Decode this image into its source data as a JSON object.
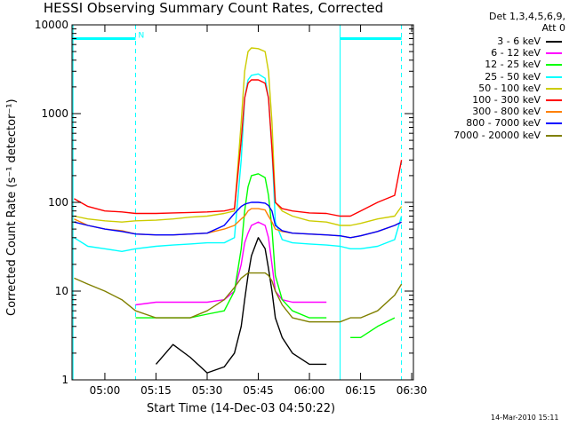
{
  "chart_data": {
    "type": "line",
    "title": "HESSI Observing Summary Count Rates, Corrected",
    "xlabel": "Start Time (14-Dec-03 04:50:22)",
    "ylabel": "Corrected Count Rate (s⁻¹ detector⁻¹)",
    "yscale": "log",
    "xlim": [
      "04:50:22",
      "06:30:30"
    ],
    "ylim": [
      1,
      10000
    ],
    "x_ticks": [
      "05:00",
      "05:15",
      "05:30",
      "05:45",
      "06:00",
      "06:15",
      "06:30"
    ],
    "y_ticks": [
      "1",
      "10",
      "100",
      "1000",
      "10000"
    ],
    "legend_header": [
      "Det 1,3,4,5,6,9,",
      "Att 0"
    ],
    "legend_position": "right",
    "grid": false,
    "annotations": [
      {
        "text": "N",
        "x": "05:09",
        "y": 7000,
        "color": "#00ffff"
      }
    ],
    "bars": [
      {
        "name": "night",
        "from": "04:50:22",
        "to": "05:09",
        "y": 7000,
        "color": "#00ffff"
      },
      {
        "name": "night",
        "from": "06:09",
        "to": "06:27",
        "y": 7000,
        "color": "#00ffff"
      }
    ],
    "vlines": [
      {
        "x": "04:50:40",
        "style": "solid",
        "color": "#00ffff"
      },
      {
        "x": "05:09",
        "style": "dashed",
        "color": "#00ffff"
      },
      {
        "x": "06:09",
        "style": "solid",
        "color": "#00ffff"
      },
      {
        "x": "06:27",
        "style": "dashed",
        "color": "#00ffff"
      }
    ],
    "x": [
      "04:51",
      "04:55",
      "05:00",
      "05:05",
      "05:09",
      "05:15",
      "05:20",
      "05:25",
      "05:30",
      "05:35",
      "05:38",
      "05:40",
      "05:41",
      "05:42",
      "05:43",
      "05:45",
      "05:47",
      "05:48",
      "05:49",
      "05:50",
      "05:52",
      "05:55",
      "06:00",
      "06:05",
      "06:09",
      "06:12",
      "06:15",
      "06:20",
      "06:25",
      "06:27"
    ],
    "series": [
      {
        "name": "3 - 6 keV",
        "color": "#000000",
        "values": [
          null,
          null,
          null,
          null,
          null,
          1.5,
          2.5,
          1.8,
          1.2,
          1.4,
          2.0,
          4.0,
          8.0,
          15,
          25,
          40,
          30,
          18,
          10,
          5,
          3,
          2,
          1.5,
          1.5,
          null,
          null,
          null,
          null,
          null,
          null
        ]
      },
      {
        "name": "6 - 12 keV",
        "color": "#ff00ff",
        "values": [
          null,
          null,
          null,
          null,
          7,
          7.5,
          7.5,
          7.5,
          7.5,
          8,
          10,
          20,
          35,
          45,
          55,
          60,
          55,
          40,
          20,
          10,
          8,
          7.5,
          7.5,
          7.5,
          null,
          null,
          null,
          null,
          null,
          null
        ]
      },
      {
        "name": "12 - 25 keV",
        "color": "#00ff00",
        "values": [
          null,
          null,
          null,
          null,
          5,
          5,
          5,
          5,
          5.5,
          6,
          10,
          30,
          80,
          150,
          200,
          210,
          190,
          120,
          50,
          15,
          8,
          6,
          5,
          5,
          null,
          3,
          3,
          4,
          5,
          null
        ]
      },
      {
        "name": "25 - 50 keV",
        "color": "#00ffff",
        "values": [
          40,
          32,
          30,
          28,
          30,
          32,
          33,
          34,
          35,
          35,
          40,
          300,
          1500,
          2400,
          2700,
          2800,
          2500,
          1500,
          400,
          60,
          38,
          35,
          34,
          33,
          32,
          30,
          30,
          32,
          38,
          70
        ]
      },
      {
        "name": "50 - 100 keV",
        "color": "#cccc00",
        "values": [
          70,
          65,
          62,
          60,
          62,
          63,
          65,
          68,
          70,
          75,
          80,
          800,
          3000,
          5000,
          5500,
          5400,
          5000,
          3000,
          800,
          100,
          80,
          70,
          62,
          60,
          55,
          55,
          58,
          65,
          70,
          90
        ]
      },
      {
        "name": "100 - 300 keV",
        "color": "#ff0000",
        "values": [
          110,
          90,
          80,
          78,
          75,
          75,
          76,
          77,
          78,
          80,
          85,
          500,
          1500,
          2200,
          2400,
          2400,
          2200,
          1500,
          400,
          100,
          85,
          80,
          76,
          75,
          70,
          70,
          80,
          100,
          120,
          300
        ]
      },
      {
        "name": "300 - 800 keV",
        "color": "#ff8000",
        "values": [
          65,
          55,
          50,
          48,
          44,
          43,
          43,
          44,
          45,
          50,
          55,
          65,
          70,
          80,
          85,
          85,
          82,
          70,
          60,
          50,
          47,
          45,
          44,
          43,
          42,
          40,
          42,
          47,
          55,
          60
        ]
      },
      {
        "name": "800 - 7000 keV",
        "color": "#0000ff",
        "values": [
          60,
          55,
          50,
          47,
          44,
          43,
          43,
          44,
          45,
          55,
          75,
          90,
          95,
          98,
          100,
          100,
          98,
          92,
          80,
          55,
          48,
          45,
          44,
          43,
          42,
          40,
          42,
          47,
          55,
          60
        ]
      },
      {
        "name": "7000 - 20000 keV",
        "color": "#808000",
        "values": [
          14,
          12,
          10,
          8,
          6,
          5,
          5,
          5,
          6,
          8,
          11,
          14,
          15,
          16,
          16,
          16,
          16,
          15,
          13,
          10,
          7,
          5,
          4.5,
          4.5,
          4.5,
          5,
          5,
          6,
          9,
          12
        ]
      }
    ]
  },
  "timestamp": "14-Mar-2010 15:11"
}
